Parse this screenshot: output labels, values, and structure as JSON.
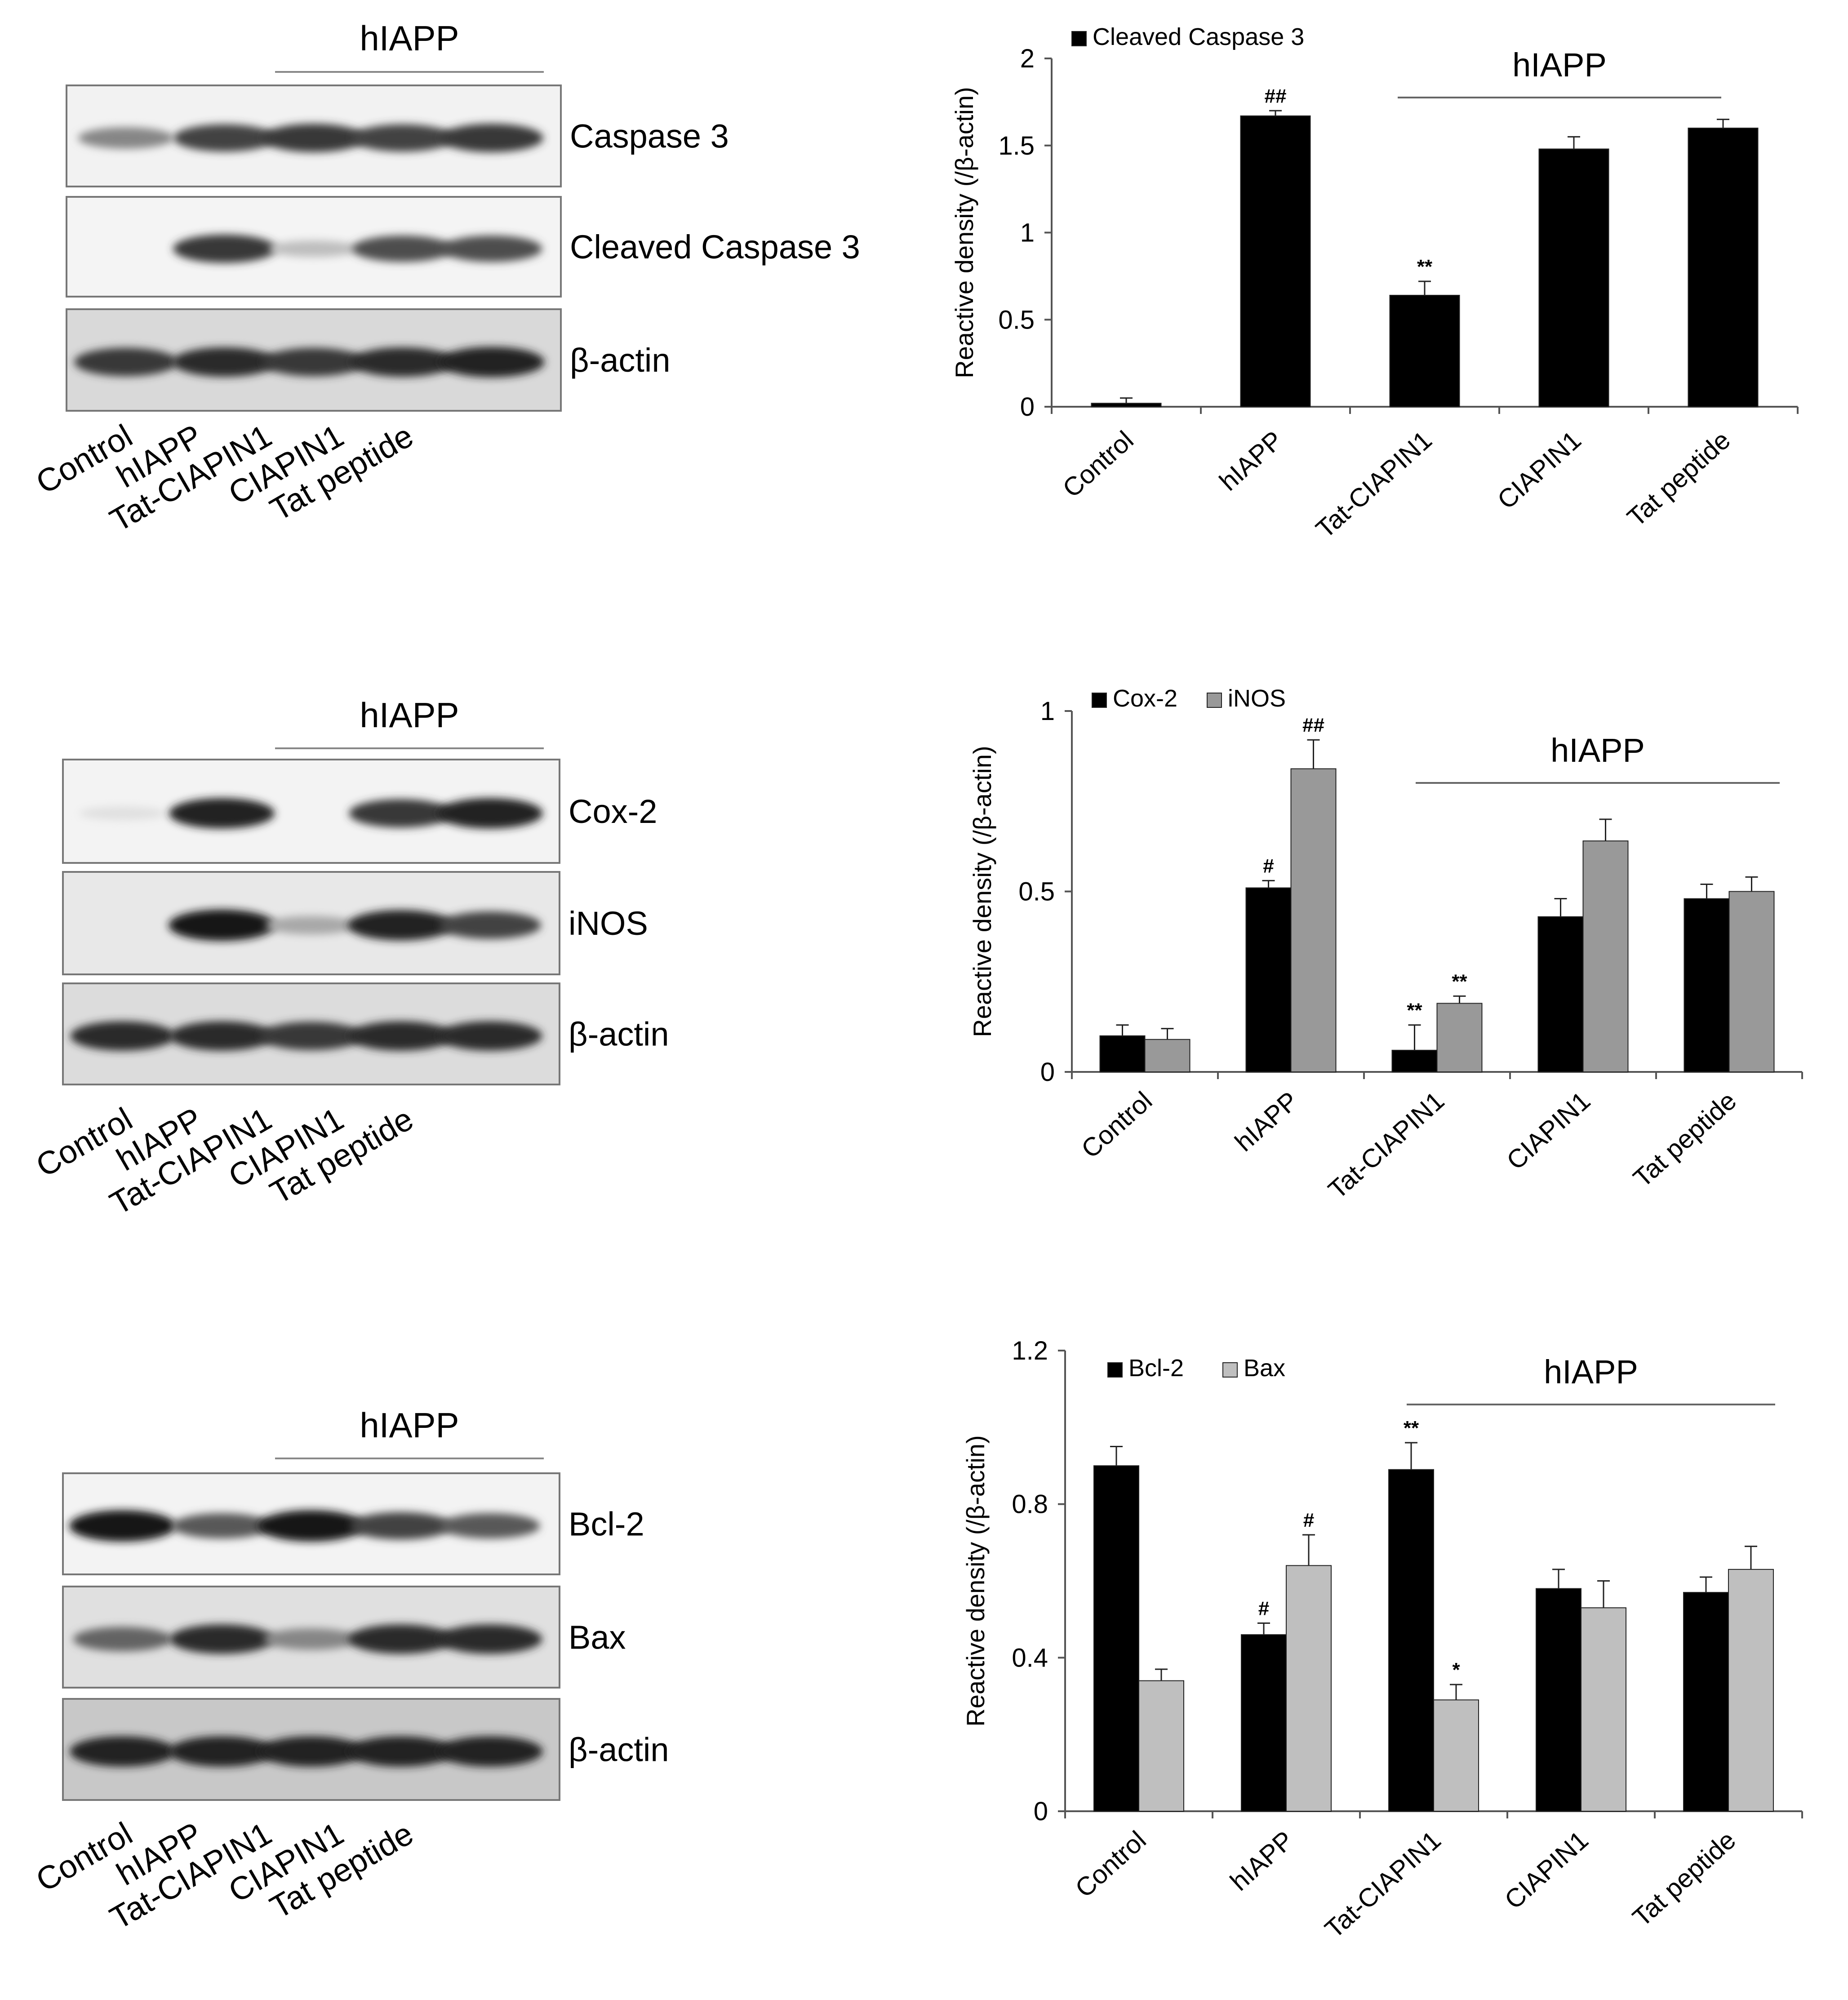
{
  "panels": [
    {
      "blot": {
        "group_label": "hIAPP",
        "lanes": [
          "Control",
          "hIAPP",
          "Tat-CIAPIN1",
          "CIAPIN1",
          "Tat peptide"
        ],
        "rows": [
          {
            "label": "Caspase 3",
            "intensities": [
              0.45,
              0.75,
              0.8,
              0.75,
              0.8
            ],
            "background": "#f2f2f2"
          },
          {
            "label": "Cleaved Caspase 3",
            "intensities": [
              0.0,
              0.8,
              0.2,
              0.7,
              0.7
            ],
            "background": "#f4f4f4"
          },
          {
            "label": "β-actin",
            "intensities": [
              0.8,
              0.85,
              0.8,
              0.85,
              0.9
            ],
            "background": "#d9d9d9"
          }
        ]
      },
      "chart_data": {
        "type": "bar",
        "categories": [
          "Control",
          "hIAPP",
          "Tat-CIAPIN1",
          "CIAPIN1",
          "Tat peptide"
        ],
        "series": [
          {
            "name": "Cleaved Caspase 3",
            "color": "#000000",
            "values": [
              0.02,
              1.67,
              0.64,
              1.48,
              1.6
            ],
            "errors": [
              0.03,
              0.03,
              0.08,
              0.07,
              0.05
            ],
            "marks": [
              "",
              "##",
              "**",
              "",
              ""
            ]
          }
        ],
        "ylabel": "Reactive density (/β-actin)",
        "ylim": [
          0,
          2
        ],
        "yticks": [
          0,
          0.5,
          1,
          1.5,
          2
        ],
        "ytick_labels": [
          "0",
          "0.5",
          "1",
          "1.5",
          "2"
        ],
        "group_label": "hIAPP",
        "grid": false,
        "legend": "top-left"
      }
    },
    {
      "blot": {
        "group_label": "hIAPP",
        "lanes": [
          "Control",
          "hIAPP",
          "Tat-CIAPIN1",
          "CIAPIN1",
          "Tat peptide"
        ],
        "rows": [
          {
            "label": "Cox-2",
            "intensities": [
              0.05,
              0.9,
              0.0,
              0.8,
              0.9
            ],
            "background": "#f3f3f3"
          },
          {
            "label": "iNOS",
            "intensities": [
              0.0,
              0.95,
              0.3,
              0.9,
              0.75
            ],
            "background": "#e8e8e8"
          },
          {
            "label": "β-actin",
            "intensities": [
              0.85,
              0.85,
              0.8,
              0.85,
              0.85
            ],
            "background": "#dcdcdc"
          }
        ]
      },
      "chart_data": {
        "type": "bar",
        "categories": [
          "Control",
          "hIAPP",
          "Tat-CIAPIN1",
          "CIAPIN1",
          "Tat peptide"
        ],
        "series": [
          {
            "name": "Cox-2",
            "color": "#000000",
            "values": [
              0.1,
              0.51,
              0.06,
              0.43,
              0.48
            ],
            "errors": [
              0.03,
              0.02,
              0.07,
              0.05,
              0.04
            ],
            "marks": [
              "",
              "#",
              "**",
              "",
              ""
            ]
          },
          {
            "name": "iNOS",
            "color": "#999999",
            "values": [
              0.09,
              0.84,
              0.19,
              0.64,
              0.5
            ],
            "errors": [
              0.03,
              0.08,
              0.02,
              0.06,
              0.04
            ],
            "marks": [
              "",
              "##",
              "**",
              "",
              ""
            ]
          }
        ],
        "ylabel": "Reactive density (/β-actin)",
        "ylim": [
          0,
          1
        ],
        "yticks": [
          0,
          0.5,
          1
        ],
        "ytick_labels": [
          "0",
          "0.5",
          "1"
        ],
        "group_label": "hIAPP",
        "grid": false,
        "legend": "top-left"
      }
    },
    {
      "blot": {
        "group_label": "hIAPP",
        "lanes": [
          "Control",
          "hIAPP",
          "Tat-CIAPIN1",
          "CIAPIN1",
          "Tat peptide"
        ],
        "rows": [
          {
            "label": "Bcl-2",
            "intensities": [
              0.95,
              0.65,
              0.95,
              0.75,
              0.65
            ],
            "background": "#f3f3f3"
          },
          {
            "label": "Bax",
            "intensities": [
              0.6,
              0.85,
              0.45,
              0.85,
              0.85
            ],
            "background": "#e0e0e0"
          },
          {
            "label": "β-actin",
            "intensities": [
              0.9,
              0.9,
              0.9,
              0.9,
              0.9
            ],
            "background": "#c8c8c8"
          }
        ]
      },
      "chart_data": {
        "type": "bar",
        "categories": [
          "Control",
          "hIAPP",
          "Tat-CIAPIN1",
          "CIAPIN1",
          "Tat peptide"
        ],
        "series": [
          {
            "name": "Bcl-2",
            "color": "#000000",
            "values": [
              0.9,
              0.46,
              0.89,
              0.58,
              0.57
            ],
            "errors": [
              0.05,
              0.03,
              0.07,
              0.05,
              0.04
            ],
            "marks": [
              "",
              "#",
              "**",
              "",
              ""
            ]
          },
          {
            "name": "Bax",
            "color": "#bfbfbf",
            "values": [
              0.34,
              0.64,
              0.29,
              0.53,
              0.63
            ],
            "errors": [
              0.03,
              0.08,
              0.04,
              0.07,
              0.06
            ],
            "marks": [
              "",
              "#",
              "*",
              "",
              ""
            ]
          }
        ],
        "ylabel": "Reactive density (/β-actin)",
        "ylim": [
          0,
          1.2
        ],
        "yticks": [
          0,
          0.4,
          0.8,
          1.2
        ],
        "ytick_labels": [
          "0",
          "0.4",
          "0.8",
          "1.2"
        ],
        "group_label": "hIAPP",
        "grid": false,
        "legend": "top-left"
      }
    }
  ]
}
